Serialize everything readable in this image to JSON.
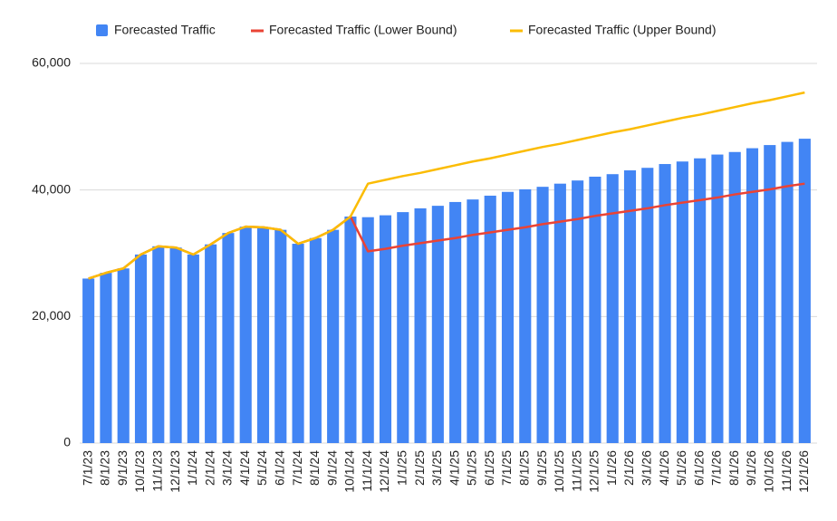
{
  "chart_data": {
    "type": "bar",
    "categories": [
      "7/1/23",
      "8/1/23",
      "9/1/23",
      "10/1/23",
      "11/1/23",
      "12/1/23",
      "1/1/24",
      "2/1/24",
      "3/1/24",
      "4/1/24",
      "5/1/24",
      "6/1/24",
      "7/1/24",
      "8/1/24",
      "9/1/24",
      "10/1/24",
      "11/1/24",
      "12/1/24",
      "1/1/25",
      "2/1/25",
      "3/1/25",
      "4/1/25",
      "5/1/25",
      "6/1/25",
      "7/1/25",
      "8/1/25",
      "9/1/25",
      "10/1/25",
      "11/1/25",
      "12/1/25",
      "1/1/26",
      "2/1/26",
      "3/1/26",
      "4/1/26",
      "5/1/26",
      "6/1/26",
      "7/1/26",
      "8/1/26",
      "9/1/26",
      "10/1/26",
      "11/1/26",
      "12/1/26"
    ],
    "series": [
      {
        "name": "Forecasted Traffic",
        "type": "bar",
        "color": "#4285f4",
        "values": [
          26000,
          26900,
          27600,
          29800,
          31100,
          30900,
          29800,
          31400,
          33200,
          34200,
          34100,
          33700,
          31500,
          32400,
          33700,
          35800,
          35700,
          36000,
          36500,
          37100,
          37500,
          38100,
          38500,
          39100,
          39700,
          40100,
          40500,
          41000,
          41500,
          42100,
          42500,
          43100,
          43500,
          44100,
          44500,
          45000,
          45600,
          46000,
          46600,
          47100,
          47600,
          48100
        ]
      },
      {
        "name": "Forecasted Traffic (Lower Bound)",
        "type": "line",
        "color": "#ea4335",
        "values": [
          26000,
          26900,
          27600,
          29800,
          31100,
          30900,
          29800,
          31400,
          33200,
          34200,
          34100,
          33700,
          31500,
          32400,
          33700,
          35800,
          30300,
          30700,
          31200,
          31600,
          32000,
          32400,
          32900,
          33300,
          33700,
          34100,
          34600,
          35000,
          35400,
          35900,
          36300,
          36700,
          37100,
          37600,
          38000,
          38400,
          38800,
          39300,
          39700,
          40100,
          40600,
          41000
        ]
      },
      {
        "name": "Forecasted Traffic (Upper Bound)",
        "type": "line",
        "color": "#fbbc04",
        "values": [
          26000,
          26900,
          27600,
          29800,
          31100,
          30900,
          29800,
          31400,
          33200,
          34200,
          34100,
          33700,
          31500,
          32400,
          33700,
          35800,
          41000,
          41600,
          42200,
          42700,
          43300,
          43900,
          44500,
          45000,
          45600,
          46200,
          46800,
          47300,
          47900,
          48500,
          49100,
          49600,
          50200,
          50800,
          51400,
          51900,
          52500,
          53100,
          53700,
          54200,
          54800,
          55400
        ]
      }
    ],
    "ylim": [
      0,
      60000
    ],
    "yticks": [
      0,
      {
        "value": 20000,
        "label": "20,000"
      },
      {
        "value": 40000,
        "label": "40,000"
      },
      {
        "value": 60000,
        "label": "60,000"
      }
    ],
    "grid": true,
    "legend": "top"
  }
}
